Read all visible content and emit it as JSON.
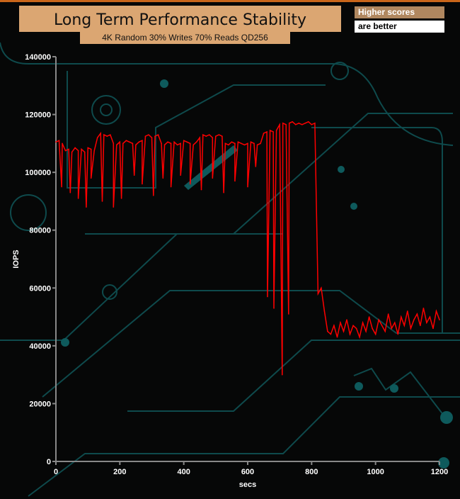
{
  "chart_data": {
    "type": "line",
    "title": "Long Term Performance Stability",
    "subtitle": "4K Random 30% Writes 70% Reads QD256",
    "legend_note": [
      "Higher scores",
      "are better"
    ],
    "xlabel": "secs",
    "ylabel": "IOPS",
    "xlim": [
      0,
      1200
    ],
    "ylim": [
      0,
      140000
    ],
    "x_ticks": [
      "0",
      "200",
      "400",
      "600",
      "800",
      "1000",
      "1200"
    ],
    "y_ticks": [
      "0",
      "20000",
      "40000",
      "60000",
      "80000",
      "100000",
      "120000",
      "140000"
    ],
    "grid": false,
    "line_color": "#ff0000",
    "x_step": 10,
    "values": [
      110500,
      111000,
      110000,
      107500,
      108000,
      107000,
      108500,
      107500,
      108000,
      107000,
      108500,
      108000,
      107500,
      112000,
      113500,
      113000,
      112500,
      113000,
      110000,
      109500,
      110500,
      110000,
      111000,
      110500,
      110000,
      109500,
      110500,
      111000,
      112500,
      113000,
      112000,
      112500,
      113000,
      110000,
      109500,
      110500,
      110000,
      110500,
      109500,
      110000,
      111000,
      110500,
      110000,
      109500,
      110500,
      112000,
      113000,
      112500,
      113000,
      112000,
      112500,
      113000,
      112500,
      110000,
      109500,
      110500,
      110000,
      110500,
      110000,
      109500,
      110000,
      110500,
      110000,
      109500,
      110000,
      113500,
      114000,
      114500,
      114000,
      114500,
      116500,
      117000,
      116500,
      117000,
      117500,
      116500,
      117000,
      116500,
      117000,
      117500,
      116500,
      117000,
      58000,
      60000,
      52000,
      45000,
      44000,
      47000,
      43000,
      48000,
      45000,
      49000,
      44000,
      47000,
      46000,
      43000,
      48000,
      45000,
      50000,
      46000,
      44000,
      49000,
      47000,
      45000,
      51000,
      46000,
      48000,
      44000,
      50000,
      47000,
      52000,
      46000,
      49000,
      51000,
      47000,
      53000,
      48000,
      50000,
      46000,
      52000,
      49000
    ],
    "dips": [
      [
        18,
        95000
      ],
      [
        45,
        93000
      ],
      [
        70,
        91000
      ],
      [
        95,
        88000
      ],
      [
        110,
        98000
      ],
      [
        145,
        90000
      ],
      [
        180,
        88000
      ],
      [
        205,
        91000
      ],
      [
        245,
        99000
      ],
      [
        270,
        96000
      ],
      [
        305,
        92000
      ],
      [
        335,
        98000
      ],
      [
        360,
        95000
      ],
      [
        390,
        99000
      ],
      [
        420,
        96000
      ],
      [
        455,
        94000
      ],
      [
        490,
        98000
      ],
      [
        525,
        93000
      ],
      [
        560,
        97000
      ],
      [
        600,
        95000
      ],
      [
        625,
        102000
      ],
      [
        662,
        57000
      ],
      [
        682,
        53000
      ],
      [
        708,
        30000
      ],
      [
        728,
        51000
      ]
    ]
  }
}
